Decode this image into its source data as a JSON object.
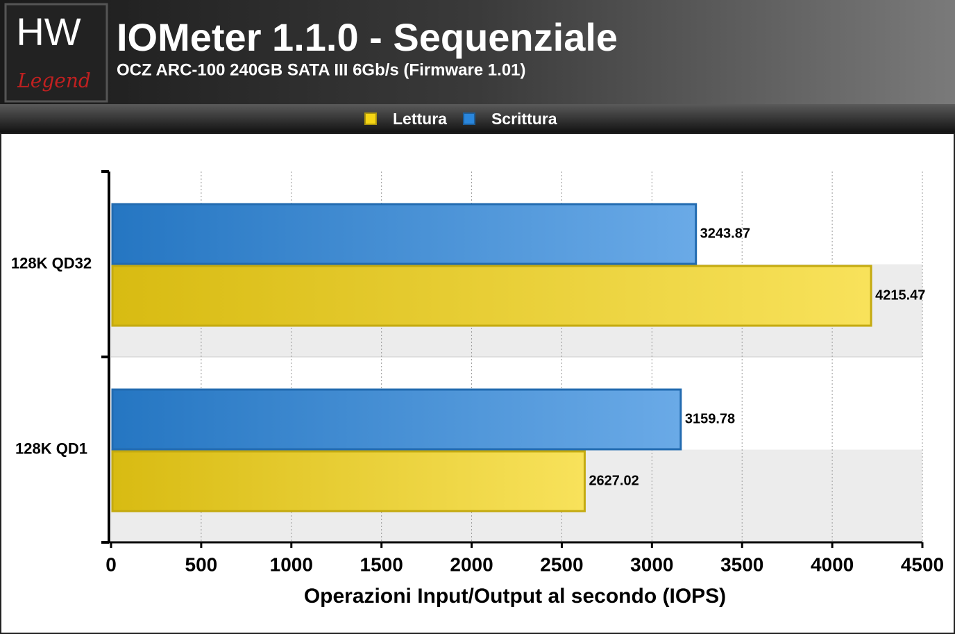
{
  "logo_lines": [
    "HW",
    "Legend"
  ],
  "chart_data": {
    "type": "barh",
    "title": "IOMeter 1.1.0 - Sequenziale",
    "subtitle": "OCZ ARC-100 240GB SATA III 6Gb/s (Firmware 1.01)",
    "x_label": "Operazioni Input/Output al secondo (IOPS)",
    "categories": [
      "128K QD32",
      "128K QD1"
    ],
    "series": [
      {
        "name": "Lettura",
        "color": "#f5d514",
        "values": [
          4215.47,
          2627.02
        ]
      },
      {
        "name": "Scrittura",
        "color": "#2a86dc",
        "values": [
          3243.87,
          3159.78
        ]
      }
    ],
    "xlim": [
      0,
      4500
    ],
    "xticks": [
      0,
      500,
      1000,
      1500,
      2000,
      2500,
      3000,
      3500,
      4000,
      4500
    ],
    "grid": true,
    "legend": "top"
  }
}
